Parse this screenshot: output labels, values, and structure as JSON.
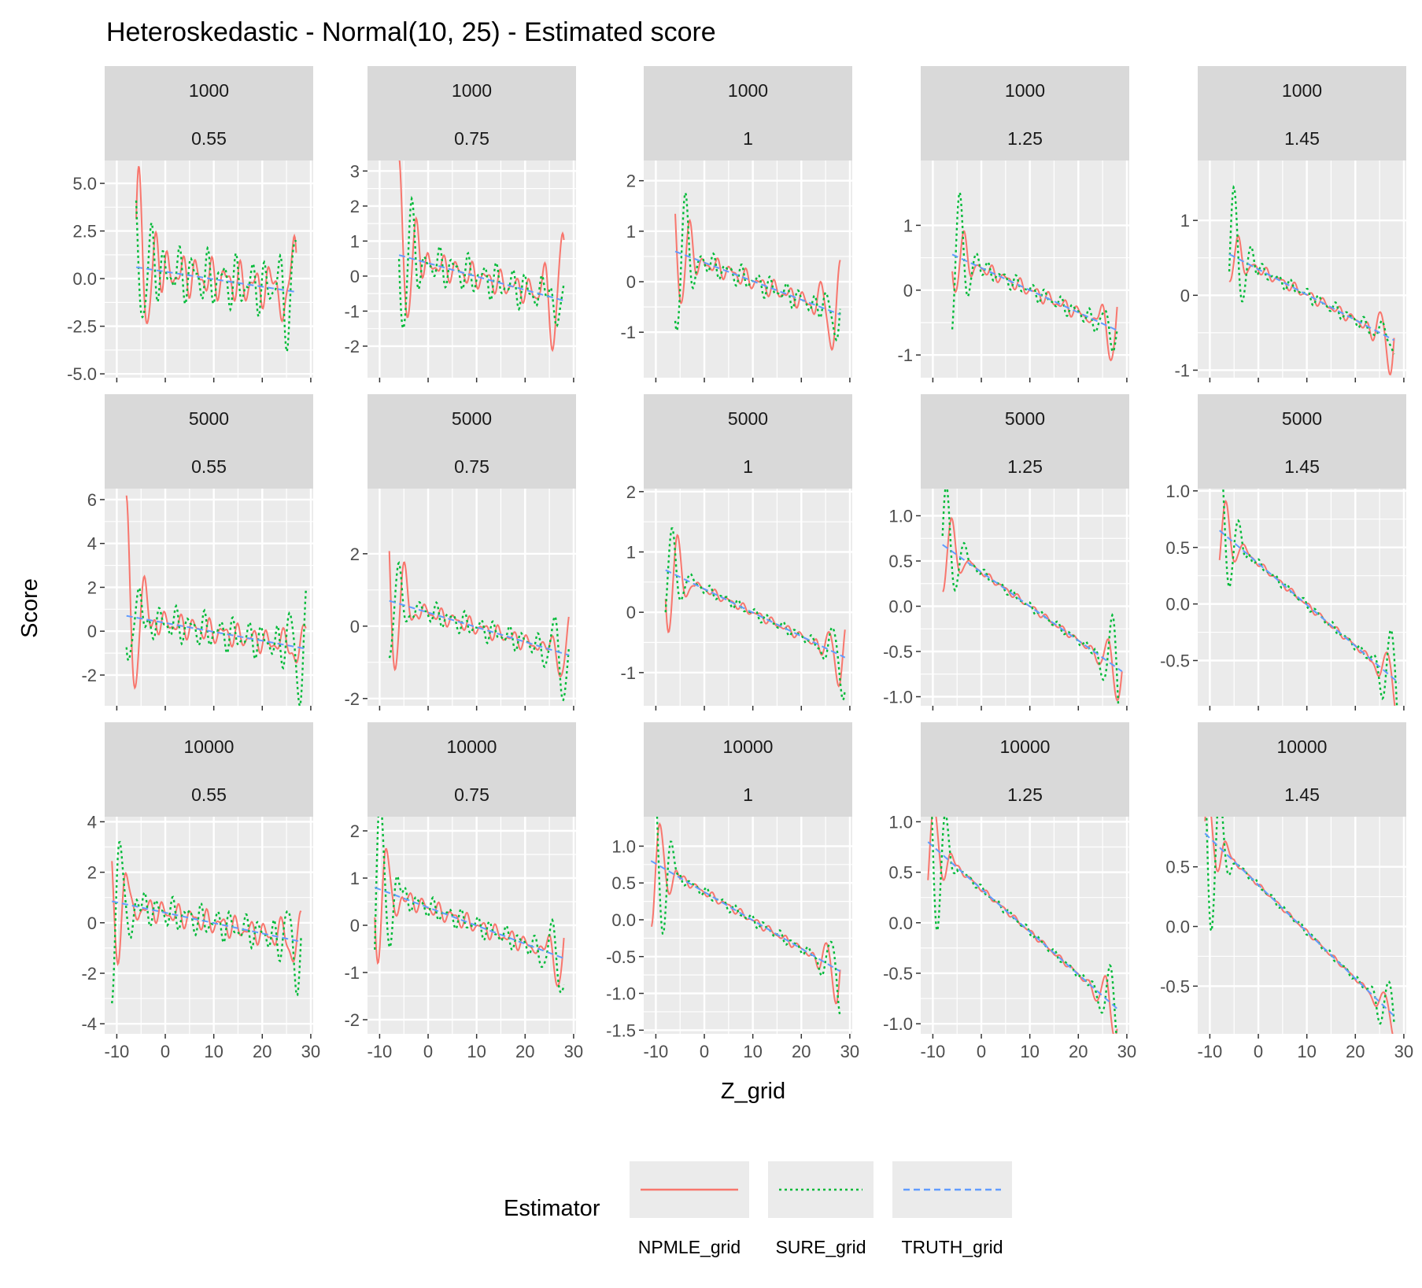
{
  "chart_data": {
    "type": "line",
    "title": "Heteroskedastic - Normal(10, 25) - Estimated score",
    "xlabel": "Z_grid",
    "ylabel": "Score",
    "legend": {
      "title": "Estimator",
      "position": "bottom",
      "entries": [
        {
          "name": "NPMLE_grid",
          "color": "#F8766D",
          "linetype": "solid"
        },
        {
          "name": "SURE_grid",
          "color": "#00BA38",
          "linetype": "dotted"
        },
        {
          "name": "TRUTH_grid",
          "color": "#619CFF",
          "linetype": "dashed"
        }
      ]
    },
    "facet_rows": [
      {
        "n": "1000",
        "panels": [
          {
            "sd": "0.55",
            "xlim": [
              -12.5,
              30.5
            ],
            "ylim": [
              -5.2,
              6.2
            ],
            "yticks": [
              -5.0,
              -2.5,
              0.0,
              2.5,
              5.0
            ],
            "ytick_labels": [
              "-5.0",
              "-2.5",
              "0.0",
              "2.5",
              "5.0"
            ],
            "xrange": [
              -6,
              27
            ],
            "truth": [
              0.6,
              -0.7
            ],
            "npmle": {
              "amp_l": 4.6,
              "amp_r": 3.5,
              "amp_m": 1.2
            },
            "sure": {
              "amp_l": 3.0,
              "amp_r": 2.5,
              "amp_m": 1.6
            }
          },
          {
            "sd": "0.75",
            "xlim": [
              -12.5,
              30.5
            ],
            "ylim": [
              -2.9,
              3.3
            ],
            "yticks": [
              -2,
              -1,
              0,
              1,
              2,
              3
            ],
            "ytick_labels": [
              "-2",
              "-1",
              "0",
              "1",
              "2",
              "3"
            ],
            "xrange": [
              -6,
              28
            ],
            "truth": [
              0.6,
              -0.7
            ],
            "npmle": {
              "amp_l": 2.4,
              "amp_r": 2.0,
              "amp_m": 0.4
            },
            "sure": {
              "amp_l": 2.3,
              "amp_r": 1.2,
              "amp_m": 0.6
            }
          },
          {
            "sd": "1",
            "xlim": [
              -12.5,
              30.5
            ],
            "ylim": [
              -1.9,
              2.4
            ],
            "yticks": [
              -1,
              0,
              1,
              2
            ],
            "ytick_labels": [
              "-1",
              "0",
              "1",
              "2"
            ],
            "xrange": [
              -6,
              28
            ],
            "truth": [
              0.6,
              -0.65
            ],
            "npmle": {
              "amp_l": 1.2,
              "amp_r": 1.2,
              "amp_m": 0.2
            },
            "sure": {
              "amp_l": 1.6,
              "amp_r": 0.5,
              "amp_m": 0.25
            }
          },
          {
            "sd": "1.25",
            "xlim": [
              -12.5,
              30.5
            ],
            "ylim": [
              -1.35,
              2.0
            ],
            "yticks": [
              -1,
              0,
              1
            ],
            "ytick_labels": [
              "-1",
              "0",
              "1"
            ],
            "xrange": [
              -6,
              28
            ],
            "truth": [
              0.55,
              -0.62
            ],
            "npmle": {
              "amp_l": 0.6,
              "amp_r": 0.7,
              "amp_m": 0.12
            },
            "sure": {
              "amp_l": 1.2,
              "amp_r": 0.3,
              "amp_m": 0.14
            }
          },
          {
            "sd": "1.45",
            "xlim": [
              -12.5,
              30.5
            ],
            "ylim": [
              -1.1,
              1.8
            ],
            "yticks": [
              -1,
              0,
              1
            ],
            "ytick_labels": [
              "-1",
              "0",
              "1"
            ],
            "xrange": [
              -6,
              28
            ],
            "truth": [
              0.55,
              -0.6
            ],
            "npmle": {
              "amp_l": 0.35,
              "amp_r": 0.5,
              "amp_m": 0.08
            },
            "sure": {
              "amp_l": 1.0,
              "amp_r": 0.25,
              "amp_m": 0.1
            }
          }
        ]
      },
      {
        "n": "5000",
        "panels": [
          {
            "sd": "0.55",
            "xlim": [
              -12.5,
              30.5
            ],
            "ylim": [
              -3.4,
              6.5
            ],
            "yticks": [
              -2,
              0,
              2,
              4,
              6
            ],
            "ytick_labels": [
              "-2",
              "0",
              "2",
              "4",
              "6"
            ],
            "xrange": [
              -8,
              29
            ],
            "truth": [
              0.7,
              -0.8
            ],
            "npmle": {
              "amp_l": 5.4,
              "amp_r": 1.5,
              "amp_m": 0.6
            },
            "sure": {
              "amp_l": 2.8,
              "amp_r": 2.6,
              "amp_m": 0.9
            }
          },
          {
            "sd": "0.75",
            "xlim": [
              -12.5,
              30.5
            ],
            "ylim": [
              -2.2,
              3.8
            ],
            "yticks": [
              -2,
              0,
              2
            ],
            "ytick_labels": [
              "-2",
              "0",
              "2"
            ],
            "xrange": [
              -8,
              29
            ],
            "truth": [
              0.7,
              -0.8
            ],
            "npmle": {
              "amp_l": 2.6,
              "amp_r": 1.0,
              "amp_m": 0.25
            },
            "sure": {
              "amp_l": 1.8,
              "amp_r": 1.6,
              "amp_m": 0.35
            }
          },
          {
            "sd": "1",
            "xlim": [
              -12.5,
              30.5
            ],
            "ylim": [
              -1.55,
              2.05
            ],
            "yticks": [
              -1,
              0,
              1,
              2
            ],
            "ytick_labels": [
              "-1",
              "0",
              "1",
              "2"
            ],
            "xrange": [
              -8,
              29
            ],
            "truth": [
              0.7,
              -0.75
            ],
            "npmle": {
              "amp_l": 1.2,
              "amp_r": 0.6,
              "amp_m": 0.08
            },
            "sure": {
              "amp_l": 1.0,
              "amp_r": 0.8,
              "amp_m": 0.1
            }
          },
          {
            "sd": "1.25",
            "xlim": [
              -12.5,
              30.5
            ],
            "ylim": [
              -1.1,
              1.3
            ],
            "yticks": [
              -1.0,
              -0.5,
              0.0,
              0.5,
              1.0
            ],
            "ytick_labels": [
              "-1.0",
              "-0.5",
              "0.0",
              "0.5",
              "1.0"
            ],
            "xrange": [
              -8,
              29
            ],
            "truth": [
              0.68,
              -0.72
            ],
            "npmle": {
              "amp_l": 0.55,
              "amp_r": 0.45,
              "amp_m": 0.04
            },
            "sure": {
              "amp_l": 0.8,
              "amp_r": 0.8,
              "amp_m": 0.05
            }
          },
          {
            "sd": "1.45",
            "xlim": [
              -12.5,
              30.5
            ],
            "ylim": [
              -0.9,
              1.02
            ],
            "yticks": [
              -0.5,
              0.0,
              0.5,
              1.0
            ],
            "ytick_labels": [
              "-0.5",
              "0.0",
              "0.5",
              "1.0"
            ],
            "xrange": [
              -8,
              29
            ],
            "truth": [
              0.65,
              -0.7
            ],
            "npmle": {
              "amp_l": 0.4,
              "amp_r": 0.35,
              "amp_m": 0.03
            },
            "sure": {
              "amp_l": 0.7,
              "amp_r": 0.55,
              "amp_m": 0.04
            }
          }
        ]
      },
      {
        "n": "10000",
        "panels": [
          {
            "sd": "0.55",
            "xlim": [
              -12.5,
              30.5
            ],
            "ylim": [
              -4.4,
              4.2
            ],
            "yticks": [
              -4,
              -2,
              0,
              2,
              4
            ],
            "ytick_labels": [
              "-4",
              "-2",
              "0",
              "2",
              "4"
            ],
            "xrange": [
              -11,
              28
            ],
            "truth": [
              0.85,
              -0.75
            ],
            "npmle": {
              "amp_l": 3.2,
              "amp_r": 1.5,
              "amp_m": 0.5
            },
            "sure": {
              "amp_l": 4.0,
              "amp_r": 1.8,
              "amp_m": 0.7
            }
          },
          {
            "sd": "0.75",
            "xlim": [
              -12.5,
              30.5
            ],
            "ylim": [
              -2.3,
              2.3
            ],
            "yticks": [
              -2,
              -1,
              0,
              1,
              2
            ],
            "ytick_labels": [
              "-2",
              "-1",
              "0",
              "1",
              "2"
            ],
            "xrange": [
              -11,
              28
            ],
            "truth": [
              0.8,
              -0.7
            ],
            "npmle": {
              "amp_l": 1.8,
              "amp_r": 0.9,
              "amp_m": 0.2
            },
            "sure": {
              "amp_l": 2.6,
              "amp_r": 1.0,
              "amp_m": 0.25
            }
          },
          {
            "sd": "1",
            "xlim": [
              -12.5,
              30.5
            ],
            "ylim": [
              -1.55,
              1.4
            ],
            "yticks": [
              -1.5,
              -1.0,
              -0.5,
              0.0,
              0.5,
              1.0
            ],
            "ytick_labels": [
              "-1.5",
              "-1.0",
              "-0.5",
              "0.0",
              "0.5",
              "1.0"
            ],
            "xrange": [
              -11,
              28
            ],
            "truth": [
              0.8,
              -0.7
            ],
            "npmle": {
              "amp_l": 0.9,
              "amp_r": 0.5,
              "amp_m": 0.06
            },
            "sure": {
              "amp_l": 1.6,
              "amp_r": 0.6,
              "amp_m": 0.08
            }
          },
          {
            "sd": "1.25",
            "xlim": [
              -12.5,
              30.5
            ],
            "ylim": [
              -1.1,
              1.05
            ],
            "yticks": [
              -1.0,
              -0.5,
              0.0,
              0.5,
              1.0
            ],
            "ytick_labels": [
              "-1.0",
              "-0.5",
              "0.0",
              "0.5",
              "1.0"
            ],
            "xrange": [
              -11,
              28
            ],
            "truth": [
              0.8,
              -0.85
            ],
            "npmle": {
              "amp_l": 0.55,
              "amp_r": 0.35,
              "amp_m": 0.03
            },
            "sure": {
              "amp_l": 1.2,
              "amp_r": 0.45,
              "amp_m": 0.04
            }
          },
          {
            "sd": "1.45",
            "xlim": [
              -12.5,
              30.5
            ],
            "ylim": [
              -0.9,
              0.92
            ],
            "yticks": [
              -0.5,
              0.0,
              0.5
            ],
            "ytick_labels": [
              "-0.5",
              "0.0",
              "0.5"
            ],
            "xrange": [
              -11,
              28
            ],
            "truth": [
              0.78,
              -0.75
            ],
            "npmle": {
              "amp_l": 0.4,
              "amp_r": 0.2,
              "amp_m": 0.02
            },
            "sure": {
              "amp_l": 1.0,
              "amp_r": 0.3,
              "amp_m": 0.03
            }
          }
        ]
      }
    ],
    "xticks": [
      -10,
      0,
      10,
      20,
      30
    ],
    "xtick_labels": [
      "-10",
      "0",
      "10",
      "20",
      "30"
    ]
  }
}
